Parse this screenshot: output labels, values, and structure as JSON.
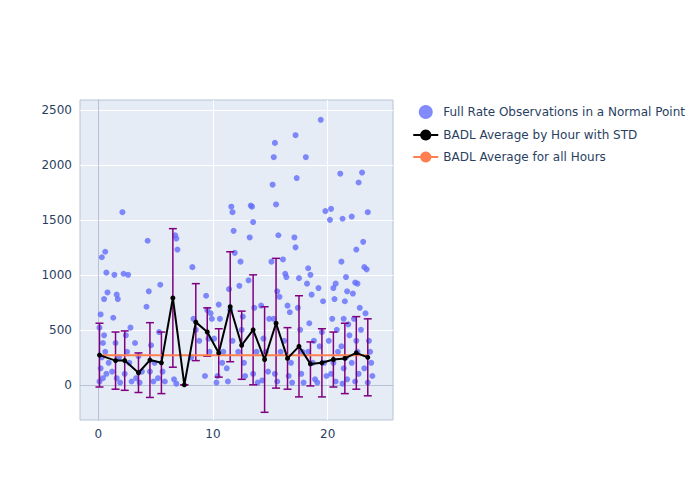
{
  "chart_data": {
    "type": "scatter",
    "xlim": [
      -1.6,
      25.7
    ],
    "xticks": [
      0,
      10,
      20
    ],
    "ylim": [
      -320,
      2590
    ],
    "yticks": [
      0,
      500,
      1000,
      1500,
      2000,
      2500
    ],
    "grid": true,
    "legend": "right",
    "series": [
      {
        "name": "Full Rate Observations in a Normal Point",
        "type": "scatter",
        "marker": "circle",
        "color": "#636efa",
        "x": [
          0.1,
          0.2,
          0.3,
          0.4,
          0.5,
          0.6,
          0.7,
          0.8,
          0.2,
          0.4,
          0.6,
          0.9,
          0.1,
          0.5,
          0.7,
          0.3,
          1.3,
          1.4,
          1.6,
          1.7,
          1.5,
          1.8,
          1.2,
          1.9,
          1.6,
          2.1,
          2.2,
          2.6,
          2.4,
          2.8,
          2.5,
          2.3,
          2.9,
          2.7,
          3.2,
          3.5,
          3.8,
          3.3,
          3.6,
          4.3,
          4.4,
          4.2,
          4.6,
          4.5,
          4.8,
          4.9,
          5.4,
          5.3,
          5.6,
          5.8,
          5.2,
          6.7,
          6.8,
          6.9,
          6.6,
          6.8,
          8.2,
          8.3,
          8.5,
          8.8,
          8.1,
          9.4,
          9.5,
          9.8,
          9.9,
          9.6,
          9.3,
          9.7,
          10.1,
          10.3,
          10.5,
          10.6,
          10.8,
          10.4,
          10.9,
          11.4,
          11.6,
          11.7,
          11.8,
          11.9,
          11.5,
          11.2,
          11.3,
          11.7,
          12.4,
          12.3,
          12.6,
          12.5,
          12.2,
          12.8,
          12.7,
          13.3,
          13.4,
          13.5,
          13.2,
          13.6,
          13.1,
          13.8,
          13.5,
          13.9,
          14.2,
          14.4,
          14.6,
          14.8,
          14.3,
          14.9,
          15.2,
          15.3,
          15.4,
          15.5,
          15.1,
          15.7,
          15.6,
          15.8,
          15.3,
          15.9,
          15.4,
          15.6,
          16.1,
          16.3,
          16.4,
          16.5,
          16.7,
          16.2,
          16.8,
          16.6,
          16.9,
          17.2,
          17.3,
          17.1,
          17.2,
          17.5,
          17.4,
          17.6,
          17.8,
          17.7,
          17.9,
          18.1,
          18.3,
          18.5,
          18.2,
          18.6,
          18.4,
          18.8,
          18.7,
          18.9,
          18.3,
          19.4,
          19.8,
          19.2,
          19.6,
          19.5,
          19.3,
          19.7,
          19.9,
          19.1,
          20.3,
          20.2,
          20.7,
          20.5,
          20.6,
          20.4,
          20.8,
          20.1,
          20.9,
          20.5,
          20.3,
          20.7,
          21.1,
          21.3,
          21.2,
          21.6,
          21.7,
          21.5,
          21.4,
          21.8,
          21.9,
          21.2,
          21.6,
          21.4,
          21.7,
          21.3,
          22.1,
          22.5,
          22.4,
          22.6,
          22.7,
          22.2,
          22.8,
          22.3,
          22.9,
          22.5,
          22.6,
          22.1,
          22.7,
          22.4,
          23.0,
          23.1,
          23.2,
          23.5,
          23.4,
          23.3,
          23.6,
          23.7,
          23.8,
          23.2,
          23.9,
          23.5
        ],
        "values": [
          520,
          640,
          1160,
          380,
          780,
          1210,
          1020,
          840,
          150,
          60,
          300,
          200,
          30,
          450,
          100,
          250,
          610,
          1000,
          820,
          780,
          380,
          250,
          120,
          20,
          60,
          1570,
          1010,
          1000,
          450,
          520,
          300,
          100,
          30,
          200,
          380,
          260,
          120,
          60,
          20,
          1310,
          850,
          710,
          360,
          120,
          30,
          200,
          910,
          480,
          120,
          30,
          60,
          1360,
          1330,
          1230,
          50,
          10,
          1070,
          600,
          500,
          400,
          250,
          810,
          680,
          650,
          600,
          420,
          80,
          300,
          420,
          20,
          730,
          600,
          200,
          80,
          300,
          870,
          1620,
          1570,
          1400,
          1200,
          680,
          150,
          30,
          400,
          1120,
          900,
          620,
          500,
          300,
          80,
          200,
          1630,
          1620,
          1480,
          1340,
          700,
          950,
          300,
          100,
          20,
          720,
          420,
          300,
          120,
          40,
          600,
          1820,
          2070,
          2200,
          1640,
          1120,
          1360,
          850,
          800,
          600,
          300,
          100,
          30,
          1140,
          1010,
          980,
          720,
          660,
          400,
          200,
          80,
          20,
          2270,
          1880,
          1340,
          1250,
          970,
          700,
          500,
          300,
          100,
          20,
          2070,
          1060,
          1000,
          920,
          820,
          560,
          400,
          200,
          50,
          300,
          2410,
          1580,
          880,
          760,
          480,
          350,
          200,
          80,
          20,
          1600,
          1500,
          920,
          880,
          780,
          600,
          500,
          400,
          300,
          200,
          100,
          30,
          1920,
          1510,
          1120,
          980,
          850,
          760,
          600,
          550,
          450,
          350,
          250,
          150,
          50,
          10,
          1530,
          1230,
          930,
          920,
          1840,
          830,
          700,
          600,
          500,
          400,
          300,
          200,
          100,
          30,
          1930,
          1300,
          1070,
          1570,
          1050,
          650,
          400,
          300,
          200,
          150,
          80,
          20
        ]
      },
      {
        "name": "BADL Average by Hour with STD",
        "type": "line",
        "marker": "circle",
        "color": "#000000",
        "x": [
          0.1,
          1.5,
          2.3,
          3.5,
          4.5,
          5.5,
          6.5,
          7.5,
          8.5,
          9.5,
          10.5,
          11.5,
          12.5,
          13.5,
          14.5,
          15.5,
          16.5,
          17.5,
          18.5,
          19.5,
          20.5,
          21.5,
          22.5,
          23.5
        ],
        "values": [
          270,
          220,
          220,
          110,
          225,
          200,
          790,
          0,
          570,
          480,
          290,
          710,
          360,
          500,
          230,
          560,
          240,
          350,
          190,
          200,
          230,
          240,
          290,
          250
        ],
        "std": [
          290,
          260,
          270,
          180,
          340,
          280,
          630,
          0,
          350,
          220,
          220,
          500,
          310,
          500,
          480,
          590,
          280,
          460,
          200,
          310,
          250,
          320,
          330,
          350
        ]
      },
      {
        "name": "BADL Average for all Hours",
        "type": "line",
        "color": "#ff7f50",
        "x": [
          0.1,
          23.5
        ],
        "values": [
          268,
          268
        ]
      }
    ]
  }
}
